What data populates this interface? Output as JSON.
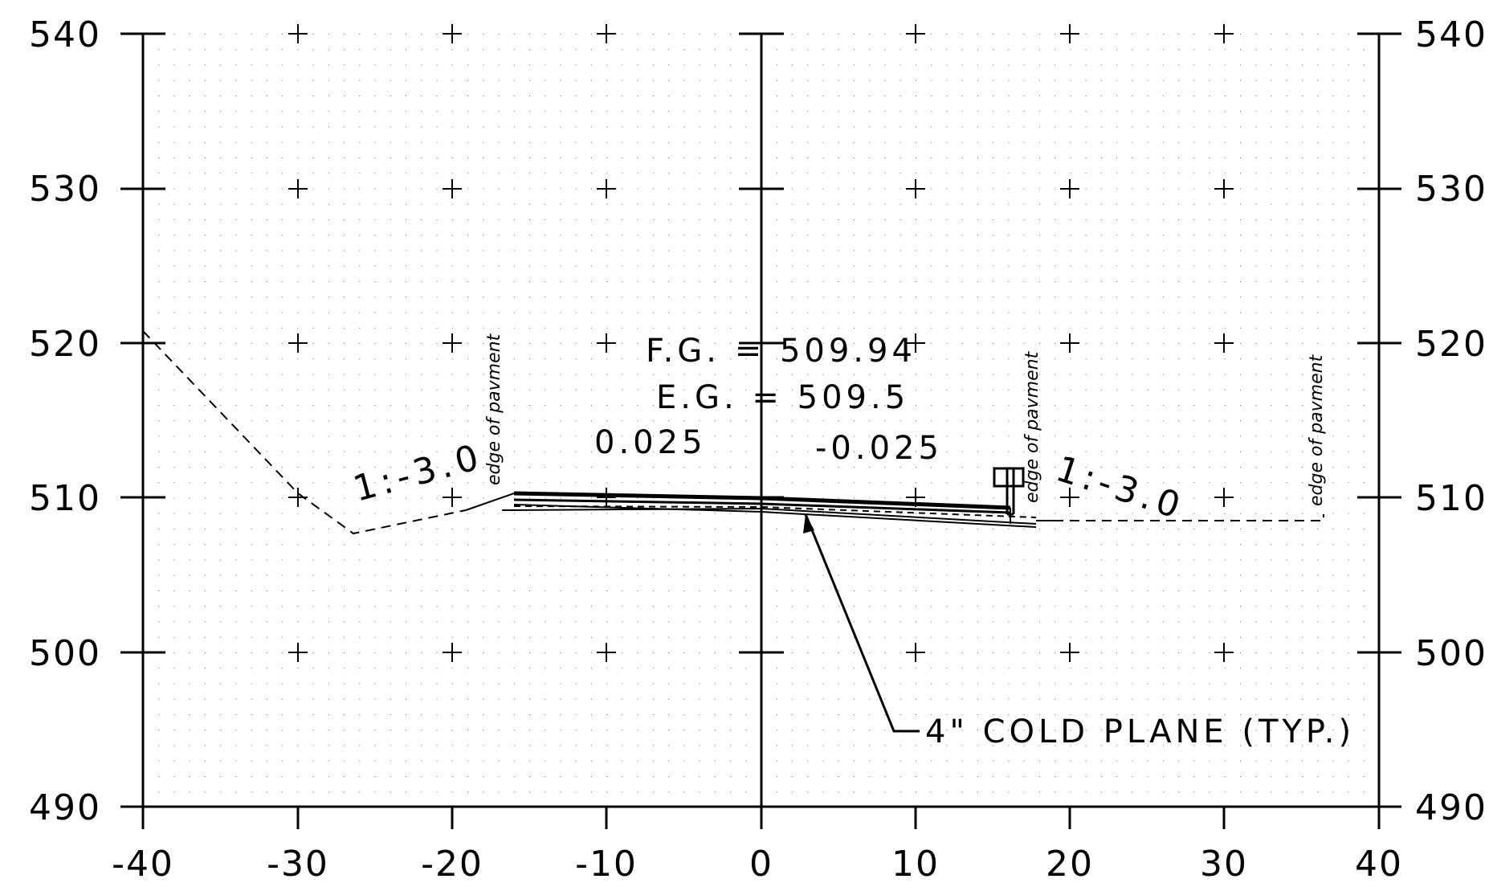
{
  "axes": {
    "x_ticks": [
      "-40",
      "-30",
      "-20",
      "-10",
      "0",
      "10",
      "20",
      "30",
      "40"
    ],
    "y_ticks": [
      "540",
      "530",
      "520",
      "510",
      "500",
      "490"
    ]
  },
  "labels": {
    "fg": "F.G. = 509.94",
    "eg": "E.G. = 509.5",
    "slope_left": "0.025",
    "slope_right": "-0.025",
    "side_slope_left": "1:-3.0",
    "side_slope_right": "1:-3.0",
    "edge_left": "edge of pavment",
    "edge_right": "edge of pavment",
    "edge_far_right": "edge of pavment",
    "callout": "4\" COLD PLANE (TYP.)"
  }
}
